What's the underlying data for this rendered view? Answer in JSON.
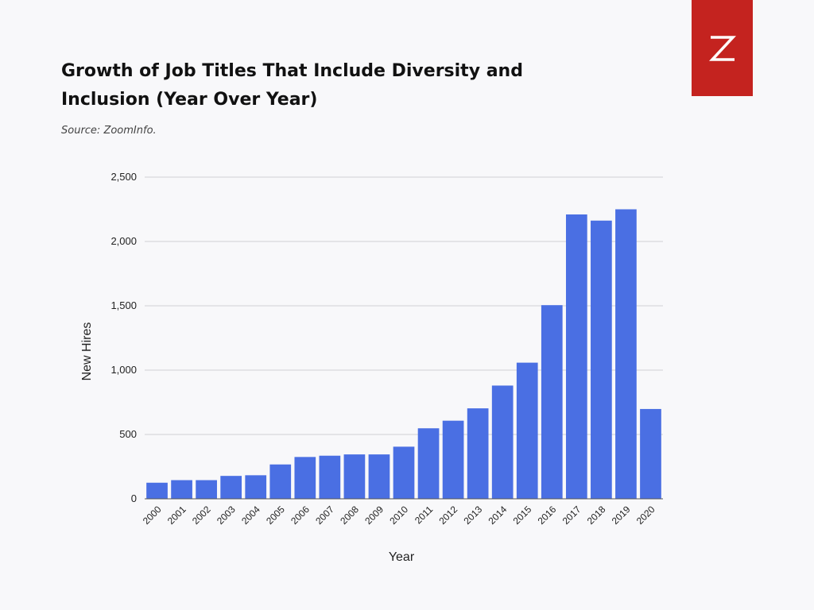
{
  "header": {
    "title": "Growth of Job Titles That Include Diversity and Inclusion (Year Over Year)",
    "source": "Source: ZoomInfo."
  },
  "brand": {
    "logo_icon": "zoominfo-z-icon",
    "color": "#c4231f"
  },
  "colors": {
    "bar": "#4a6fe3",
    "grid": "#cfcfd4",
    "text": "#222222"
  },
  "chart_data": {
    "type": "bar",
    "categories": [
      "2000",
      "2001",
      "2002",
      "2003",
      "2004",
      "2005",
      "2006",
      "2007",
      "2008",
      "2009",
      "2010",
      "2011",
      "2012",
      "2013",
      "2014",
      "2015",
      "2016",
      "2017",
      "2018",
      "2019",
      "2020"
    ],
    "values": [
      125,
      145,
      145,
      178,
      183,
      267,
      325,
      335,
      345,
      345,
      405,
      548,
      607,
      703,
      880,
      1058,
      1505,
      2210,
      2162,
      2250,
      698
    ],
    "title": "Growth of Job Titles That Include Diversity and Inclusion (Year Over Year)",
    "xlabel": "Year",
    "ylabel": "New Hires",
    "ylim": [
      0,
      2500
    ],
    "yticks": [
      0,
      500,
      1000,
      1500,
      2000,
      2500
    ],
    "ytick_labels": [
      "0",
      "500",
      "1,000",
      "1,500",
      "2,000",
      "2,500"
    ],
    "grid": true,
    "legend": "none"
  }
}
